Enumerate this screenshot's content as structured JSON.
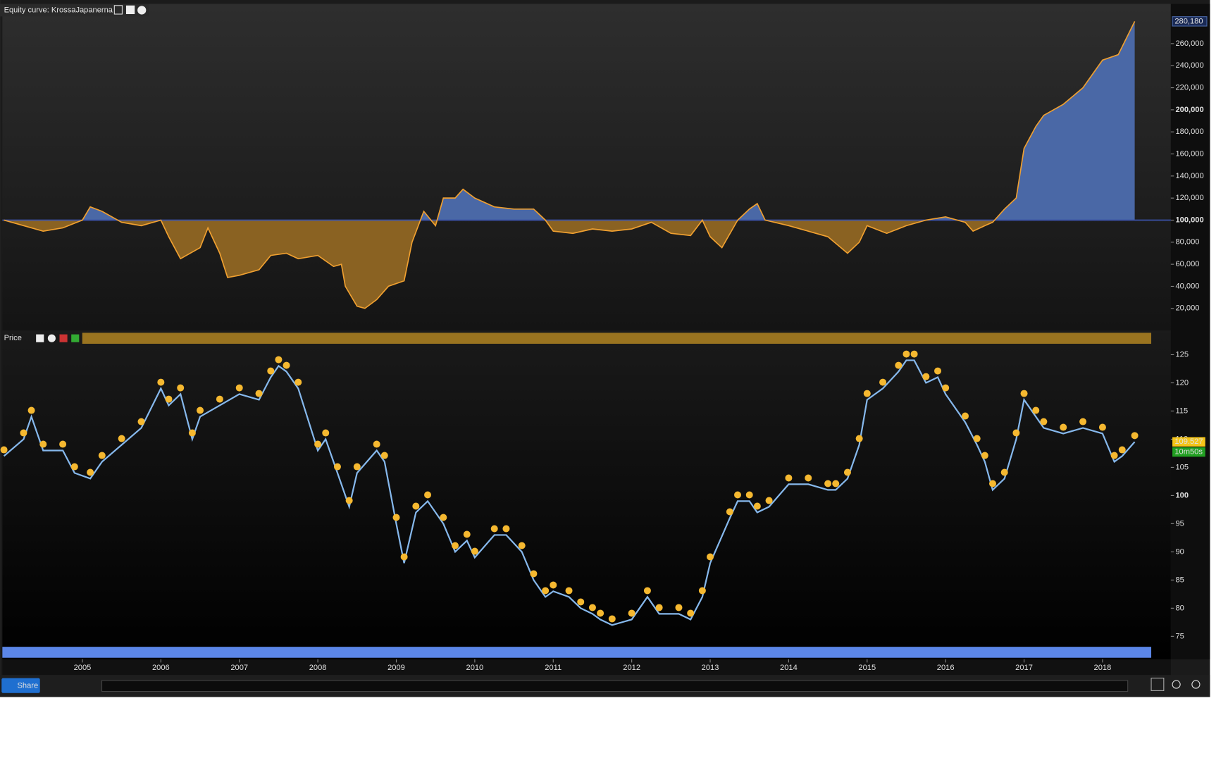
{
  "chart_data": [
    {
      "type": "area",
      "title": "Equity curve: KrossaJapanerna",
      "color": "#f0a030",
      "color_above": "#4a68a6",
      "color_below": "#8a6222",
      "baseline": 100000,
      "current_label": {
        "value": 280180,
        "label": "280,180"
      },
      "x": [
        2004.0,
        2004.25,
        2004.5,
        2004.75,
        2005.0,
        2005.1,
        2005.25,
        2005.5,
        2005.75,
        2006.0,
        2006.1,
        2006.25,
        2006.5,
        2006.6,
        2006.75,
        2006.85,
        2007.0,
        2007.25,
        2007.4,
        2007.6,
        2007.75,
        2008.0,
        2008.2,
        2008.3,
        2008.35,
        2008.5,
        2008.6,
        2008.75,
        2008.9,
        2009.1,
        2009.2,
        2009.35,
        2009.5,
        2009.6,
        2009.75,
        2009.85,
        2010.0,
        2010.25,
        2010.5,
        2010.75,
        2010.9,
        2011.0,
        2011.25,
        2011.5,
        2011.75,
        2012.0,
        2012.25,
        2012.5,
        2012.75,
        2012.9,
        2013.0,
        2013.15,
        2013.35,
        2013.5,
        2013.6,
        2013.7,
        2014.0,
        2014.25,
        2014.5,
        2014.75,
        2014.9,
        2015.0,
        2015.25,
        2015.5,
        2015.75,
        2016.0,
        2016.25,
        2016.35,
        2016.5,
        2016.6,
        2016.75,
        2016.9,
        2017.0,
        2017.15,
        2017.25,
        2017.5,
        2017.75,
        2018.0,
        2018.2,
        2018.41
      ],
      "values": [
        100000,
        95000,
        90000,
        93000,
        100000,
        112000,
        108000,
        98000,
        95000,
        100000,
        85000,
        65000,
        75000,
        93000,
        70000,
        48000,
        50000,
        55000,
        68000,
        70000,
        65000,
        68000,
        58000,
        60000,
        40000,
        22000,
        20000,
        28000,
        40000,
        45000,
        80000,
        108000,
        95000,
        120000,
        120000,
        128000,
        120000,
        112000,
        110000,
        110000,
        100000,
        90000,
        88000,
        92000,
        90000,
        92000,
        98000,
        88000,
        86000,
        100000,
        85000,
        75000,
        100000,
        110000,
        115000,
        100000,
        95000,
        90000,
        85000,
        70000,
        80000,
        95000,
        88000,
        95000,
        100000,
        103000,
        98000,
        90000,
        95000,
        98000,
        110000,
        120000,
        165000,
        185000,
        195000,
        205000,
        220000,
        245000,
        250000,
        280180
      ],
      "xlim": [
        2003.98,
        2018.87
      ],
      "ylim": [
        0,
        296000
      ],
      "yticks": [
        {
          "value": 20000,
          "label": "20,000"
        },
        {
          "value": 40000,
          "label": "40,000"
        },
        {
          "value": 60000,
          "label": "60,000"
        },
        {
          "value": 80000,
          "label": "80,000"
        },
        {
          "value": 100000,
          "label": "100,000"
        },
        {
          "value": 120000,
          "label": "120,000"
        },
        {
          "value": 140000,
          "label": "140,000"
        },
        {
          "value": 160000,
          "label": "160,000"
        },
        {
          "value": 180000,
          "label": "180,000"
        },
        {
          "value": 200000,
          "label": "200,000"
        },
        {
          "value": 220000,
          "label": "220,000"
        },
        {
          "value": 240000,
          "label": "240,000"
        },
        {
          "value": 260000,
          "label": "260,000"
        }
      ]
    },
    {
      "type": "line",
      "title": "Price",
      "color": "#86b8ec",
      "marker_color": "#f5b830",
      "current_value": 109.527,
      "countdown": "10m50s",
      "x": [
        2004.0,
        2004.25,
        2004.35,
        2004.5,
        2004.75,
        2004.9,
        2005.1,
        2005.25,
        2005.5,
        2005.75,
        2006.0,
        2006.1,
        2006.25,
        2006.4,
        2006.5,
        2006.75,
        2007.0,
        2007.25,
        2007.4,
        2007.5,
        2007.6,
        2007.75,
        2008.0,
        2008.1,
        2008.25,
        2008.4,
        2008.5,
        2008.75,
        2008.85,
        2009.0,
        2009.1,
        2009.25,
        2009.4,
        2009.6,
        2009.75,
        2009.9,
        2010.0,
        2010.25,
        2010.4,
        2010.6,
        2010.75,
        2010.9,
        2011.0,
        2011.2,
        2011.35,
        2011.5,
        2011.6,
        2011.75,
        2012.0,
        2012.2,
        2012.35,
        2012.6,
        2012.75,
        2012.9,
        2013.0,
        2013.25,
        2013.35,
        2013.5,
        2013.6,
        2013.75,
        2014.0,
        2014.25,
        2014.5,
        2014.6,
        2014.75,
        2014.9,
        2015.0,
        2015.2,
        2015.4,
        2015.5,
        2015.6,
        2015.75,
        2015.9,
        2016.0,
        2016.25,
        2016.4,
        2016.5,
        2016.6,
        2016.75,
        2016.9,
        2017.0,
        2017.15,
        2017.25,
        2017.5,
        2017.75,
        2018.0,
        2018.15,
        2018.25,
        2018.41
      ],
      "values": [
        107,
        110,
        114,
        108,
        108,
        104,
        103,
        106,
        109,
        112,
        119,
        116,
        118,
        110,
        114,
        116,
        118,
        117,
        121,
        123,
        122,
        119,
        108,
        110,
        104,
        98,
        104,
        108,
        106,
        95,
        88,
        97,
        99,
        95,
        90,
        92,
        89,
        93,
        93,
        90,
        85,
        82,
        83,
        82,
        80,
        79,
        78,
        77,
        78,
        82,
        79,
        79,
        78,
        82,
        88,
        96,
        99,
        99,
        97,
        98,
        102,
        102,
        101,
        101,
        103,
        109,
        117,
        119,
        122,
        124,
        124,
        120,
        121,
        118,
        113,
        109,
        106,
        101,
        103,
        110,
        117,
        114,
        112,
        111,
        112,
        111,
        106,
        107,
        109.527
      ],
      "xlim": [
        2003.98,
        2018.87
      ],
      "xticks": [
        2005,
        2006,
        2007,
        2008,
        2009,
        2010,
        2011,
        2012,
        2013,
        2014,
        2015,
        2016,
        2017,
        2018
      ],
      "ylim": [
        71.2,
        126.8
      ],
      "yticks": [
        75,
        80,
        85,
        90,
        95,
        100,
        105,
        110,
        115,
        120,
        125
      ]
    }
  ],
  "toolbar": {
    "share": "Share"
  }
}
